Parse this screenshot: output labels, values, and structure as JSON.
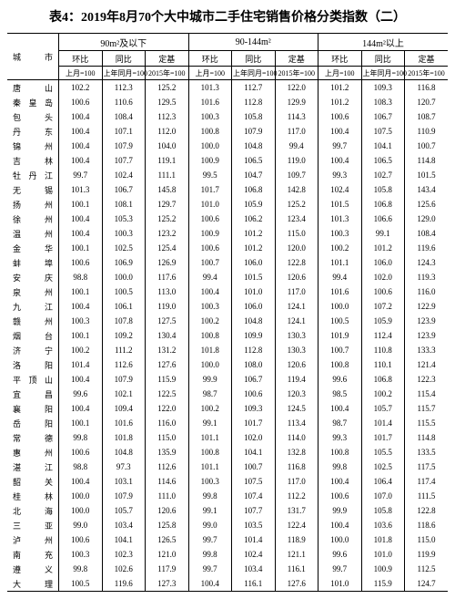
{
  "title": "表4：2019年8月70个大中城市二手住宅销售价格分类指数（二）",
  "col_city": "城市",
  "groups": [
    "90m²及以下",
    "90-144m²",
    "144m²以上"
  ],
  "sub_headers": [
    "环比",
    "同比",
    "定基"
  ],
  "sub2_headers": [
    "上月=100",
    "上年同月=100",
    "2015年=100"
  ],
  "rows": [
    {
      "city": "唐　山",
      "v": [
        "102.2",
        "112.3",
        "125.2",
        "101.3",
        "112.7",
        "122.0",
        "101.2",
        "109.3",
        "116.8"
      ]
    },
    {
      "city": "秦皇岛",
      "v": [
        "100.6",
        "110.6",
        "129.5",
        "101.6",
        "112.8",
        "129.9",
        "101.2",
        "108.3",
        "120.7"
      ]
    },
    {
      "city": "包　头",
      "v": [
        "100.4",
        "108.4",
        "112.3",
        "100.3",
        "105.8",
        "114.3",
        "100.6",
        "106.7",
        "108.7"
      ]
    },
    {
      "city": "丹　东",
      "v": [
        "100.4",
        "107.1",
        "112.0",
        "100.8",
        "107.9",
        "117.0",
        "100.4",
        "107.5",
        "110.9"
      ]
    },
    {
      "city": "锦　州",
      "v": [
        "100.4",
        "107.9",
        "104.0",
        "100.0",
        "104.8",
        "99.4",
        "99.7",
        "104.1",
        "100.7"
      ]
    },
    {
      "city": "吉　林",
      "v": [
        "100.4",
        "107.7",
        "119.1",
        "100.9",
        "106.5",
        "119.0",
        "100.4",
        "106.5",
        "114.8"
      ]
    },
    {
      "city": "牡丹江",
      "v": [
        "99.7",
        "102.4",
        "111.1",
        "99.5",
        "104.7",
        "109.7",
        "99.3",
        "102.7",
        "101.5"
      ]
    },
    {
      "city": "无　锡",
      "v": [
        "101.3",
        "106.7",
        "145.8",
        "101.7",
        "106.8",
        "142.8",
        "102.4",
        "105.8",
        "143.4"
      ]
    },
    {
      "city": "扬　州",
      "v": [
        "100.1",
        "108.1",
        "129.7",
        "101.0",
        "105.9",
        "125.2",
        "101.5",
        "106.8",
        "125.6"
      ]
    },
    {
      "city": "徐　州",
      "v": [
        "100.4",
        "105.3",
        "125.2",
        "100.6",
        "106.2",
        "123.4",
        "101.3",
        "106.6",
        "129.0"
      ]
    },
    {
      "city": "温　州",
      "v": [
        "100.4",
        "100.3",
        "123.2",
        "100.9",
        "101.2",
        "115.0",
        "100.3",
        "99.1",
        "108.4"
      ]
    },
    {
      "city": "金　华",
      "v": [
        "100.1",
        "102.5",
        "125.4",
        "100.6",
        "101.2",
        "120.0",
        "100.2",
        "101.2",
        "119.6"
      ]
    },
    {
      "city": "蚌　埠",
      "v": [
        "100.6",
        "106.9",
        "126.9",
        "100.7",
        "106.0",
        "122.8",
        "101.1",
        "106.0",
        "124.3"
      ]
    },
    {
      "city": "安　庆",
      "v": [
        "98.8",
        "100.0",
        "117.6",
        "99.4",
        "101.5",
        "120.6",
        "99.4",
        "102.0",
        "119.3"
      ]
    },
    {
      "city": "泉　州",
      "v": [
        "100.1",
        "100.5",
        "113.0",
        "100.4",
        "101.0",
        "117.0",
        "101.6",
        "100.6",
        "116.0"
      ]
    },
    {
      "city": "九　江",
      "v": [
        "100.4",
        "106.1",
        "119.0",
        "100.3",
        "106.0",
        "124.1",
        "100.0",
        "107.2",
        "122.9"
      ]
    },
    {
      "city": "赣　州",
      "v": [
        "100.3",
        "107.8",
        "127.5",
        "100.2",
        "104.8",
        "124.1",
        "100.5",
        "105.9",
        "123.9"
      ]
    },
    {
      "city": "烟　台",
      "v": [
        "100.1",
        "109.2",
        "130.4",
        "100.8",
        "109.9",
        "130.3",
        "101.9",
        "112.4",
        "123.9"
      ]
    },
    {
      "city": "济　宁",
      "v": [
        "100.2",
        "111.2",
        "131.2",
        "101.8",
        "112.8",
        "130.3",
        "100.7",
        "110.8",
        "133.3"
      ]
    },
    {
      "city": "洛　阳",
      "v": [
        "101.4",
        "112.6",
        "127.6",
        "100.0",
        "108.0",
        "120.6",
        "100.8",
        "110.1",
        "121.4"
      ]
    },
    {
      "city": "平顶山",
      "v": [
        "100.4",
        "107.9",
        "115.9",
        "99.9",
        "106.7",
        "119.4",
        "99.6",
        "106.8",
        "122.3"
      ]
    },
    {
      "city": "宜　昌",
      "v": [
        "99.6",
        "102.1",
        "122.5",
        "98.7",
        "100.6",
        "120.3",
        "98.5",
        "100.2",
        "115.4"
      ]
    },
    {
      "city": "襄　阳",
      "v": [
        "100.4",
        "109.4",
        "122.0",
        "100.2",
        "109.3",
        "124.5",
        "100.4",
        "105.7",
        "115.7"
      ]
    },
    {
      "city": "岳　阳",
      "v": [
        "100.1",
        "101.6",
        "116.0",
        "99.1",
        "101.7",
        "113.4",
        "98.7",
        "101.4",
        "115.5"
      ]
    },
    {
      "city": "常　德",
      "v": [
        "99.8",
        "101.8",
        "115.0",
        "101.1",
        "102.0",
        "114.0",
        "99.3",
        "101.7",
        "114.8"
      ]
    },
    {
      "city": "惠　州",
      "v": [
        "100.6",
        "104.8",
        "135.9",
        "100.8",
        "104.1",
        "132.8",
        "100.8",
        "105.5",
        "133.5"
      ]
    },
    {
      "city": "湛　江",
      "v": [
        "98.8",
        "97.3",
        "112.6",
        "101.1",
        "100.7",
        "116.8",
        "99.8",
        "102.5",
        "117.5"
      ]
    },
    {
      "city": "韶　关",
      "v": [
        "100.4",
        "103.1",
        "114.6",
        "100.3",
        "107.5",
        "117.0",
        "100.4",
        "106.4",
        "117.4"
      ]
    },
    {
      "city": "桂　林",
      "v": [
        "100.0",
        "107.9",
        "111.0",
        "99.8",
        "107.4",
        "112.2",
        "100.6",
        "107.0",
        "111.5"
      ]
    },
    {
      "city": "北　海",
      "v": [
        "100.0",
        "105.7",
        "120.6",
        "99.1",
        "107.7",
        "131.7",
        "99.9",
        "105.8",
        "122.8"
      ]
    },
    {
      "city": "三　亚",
      "v": [
        "99.0",
        "103.4",
        "125.8",
        "99.0",
        "103.5",
        "122.4",
        "100.4",
        "103.6",
        "118.6"
      ]
    },
    {
      "city": "泸　州",
      "v": [
        "100.6",
        "104.1",
        "126.5",
        "99.7",
        "101.4",
        "118.9",
        "100.0",
        "101.8",
        "115.0"
      ]
    },
    {
      "city": "南　充",
      "v": [
        "100.3",
        "102.3",
        "121.0",
        "99.8",
        "102.4",
        "121.1",
        "99.6",
        "101.0",
        "119.9"
      ]
    },
    {
      "city": "遵　义",
      "v": [
        "99.8",
        "102.6",
        "117.9",
        "99.7",
        "103.4",
        "116.1",
        "99.7",
        "100.9",
        "112.5"
      ]
    },
    {
      "city": "大　理",
      "v": [
        "100.5",
        "119.6",
        "127.3",
        "100.4",
        "116.1",
        "127.6",
        "101.0",
        "115.9",
        "124.7"
      ]
    }
  ]
}
